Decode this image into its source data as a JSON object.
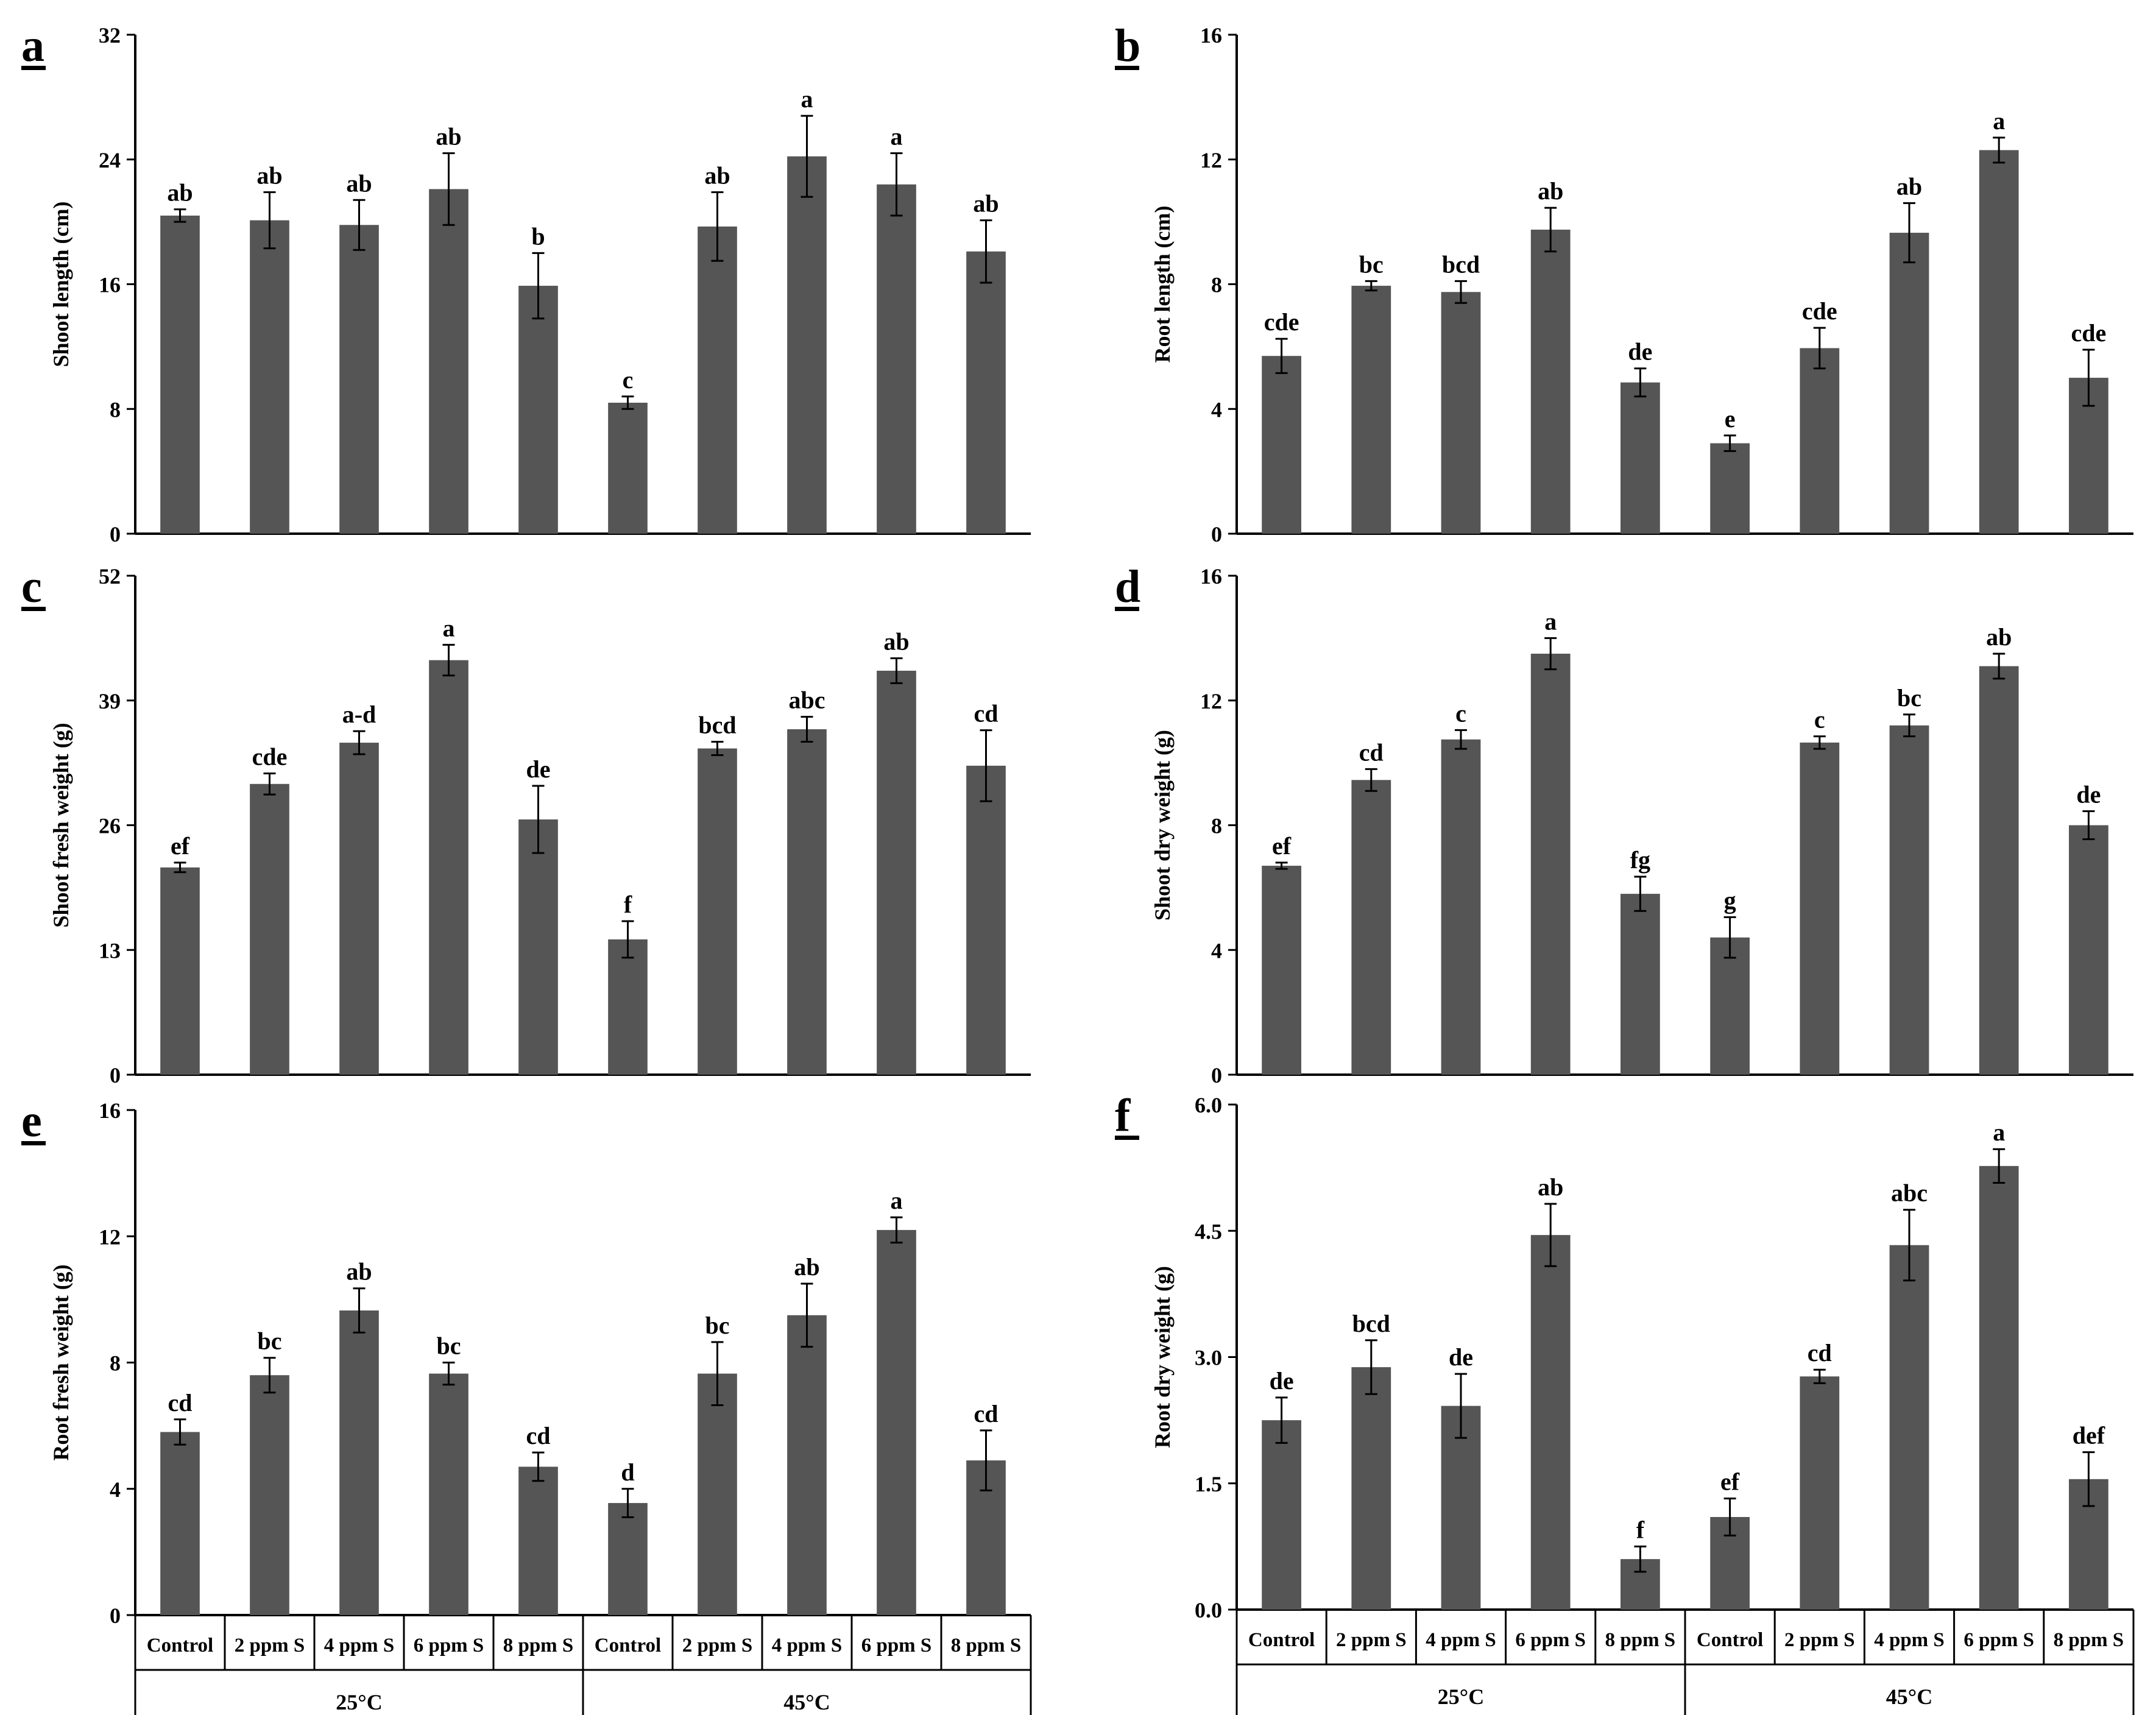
{
  "figure": {
    "categories": [
      "Control",
      "2 ppm S",
      "4 ppm S",
      "6 ppm S",
      "8 ppm S",
      "Control",
      "2 ppm S",
      "4 ppm S",
      "6 ppm S",
      "8 ppm S"
    ],
    "groups": [
      "25°C",
      "45°C"
    ],
    "bar_color": "#555555"
  },
  "chart_data": [
    {
      "panel": "a",
      "type": "bar",
      "ylabel": "Shoot length (cm)",
      "ylim": [
        0,
        32
      ],
      "yticks": [
        "0",
        "8",
        "16",
        "24",
        "32"
      ],
      "values": [
        20.4,
        20.1,
        19.8,
        22.1,
        15.9,
        8.4,
        19.7,
        24.2,
        22.4,
        18.1
      ],
      "errors": [
        0.4,
        1.8,
        1.6,
        2.3,
        2.1,
        0.4,
        2.2,
        2.6,
        2.0,
        2.0
      ],
      "significance": [
        "ab",
        "ab",
        "ab",
        "ab",
        "b",
        "c",
        "ab",
        "a",
        "a",
        "ab"
      ]
    },
    {
      "panel": "b",
      "type": "bar",
      "ylabel": "Root length (cm)",
      "ylim": [
        0,
        16
      ],
      "yticks": [
        "0",
        "4",
        "8",
        "12",
        "16"
      ],
      "values": [
        5.7,
        7.95,
        7.75,
        9.75,
        4.85,
        2.9,
        5.95,
        9.65,
        12.3,
        5.0
      ],
      "errors": [
        0.55,
        0.15,
        0.35,
        0.7,
        0.45,
        0.25,
        0.65,
        0.95,
        0.4,
        0.9
      ],
      "significance": [
        "cde",
        "bc",
        "bcd",
        "ab",
        "de",
        "e",
        "cde",
        "ab",
        "a",
        "cde"
      ]
    },
    {
      "panel": "c",
      "type": "bar",
      "ylabel": "Shoot fresh weight (g)",
      "ylim": [
        0,
        52
      ],
      "yticks": [
        "0",
        "13",
        "26",
        "39",
        "52"
      ],
      "values": [
        21.6,
        30.3,
        34.6,
        43.2,
        26.6,
        14.1,
        34.0,
        36.0,
        42.1,
        32.2
      ],
      "errors": [
        0.5,
        1.1,
        1.2,
        1.6,
        3.5,
        1.9,
        0.7,
        1.3,
        1.3,
        3.7
      ],
      "significance": [
        "ef",
        "cde",
        "a-d",
        "a",
        "de",
        "f",
        "bcd",
        "abc",
        "ab",
        "cd"
      ]
    },
    {
      "panel": "d",
      "type": "bar",
      "ylabel": "Shoot dry weight (g)",
      "ylim": [
        0,
        16
      ],
      "yticks": [
        "0",
        "4",
        "8",
        "12",
        "16"
      ],
      "values": [
        6.7,
        9.45,
        10.75,
        13.5,
        5.8,
        4.4,
        10.65,
        11.2,
        13.1,
        8.0
      ],
      "errors": [
        0.1,
        0.35,
        0.3,
        0.5,
        0.55,
        0.65,
        0.2,
        0.35,
        0.4,
        0.45
      ],
      "significance": [
        "ef",
        "cd",
        "c",
        "a",
        "fg",
        "g",
        "c",
        "bc",
        "ab",
        "de"
      ]
    },
    {
      "panel": "e",
      "type": "bar",
      "ylabel": "Root fresh weight (g)",
      "ylim": [
        0,
        16
      ],
      "yticks": [
        "0",
        "4",
        "8",
        "12",
        "16"
      ],
      "values": [
        5.8,
        7.6,
        9.65,
        7.65,
        4.7,
        3.55,
        7.65,
        9.5,
        12.2,
        4.9
      ],
      "errors": [
        0.4,
        0.55,
        0.7,
        0.35,
        0.45,
        0.45,
        1.0,
        1.0,
        0.4,
        0.95
      ],
      "significance": [
        "cd",
        "bc",
        "ab",
        "bc",
        "cd",
        "d",
        "bc",
        "ab",
        "a",
        "cd"
      ]
    },
    {
      "panel": "f",
      "type": "bar",
      "ylabel": "Root dry weight (g)",
      "ylim": [
        0,
        6
      ],
      "yticks": [
        "0.0",
        "1.5",
        "3.0",
        "4.5",
        "6.0"
      ],
      "values": [
        2.25,
        2.88,
        2.42,
        4.45,
        0.6,
        1.1,
        2.77,
        4.33,
        5.27,
        1.55
      ],
      "errors": [
        0.27,
        0.32,
        0.38,
        0.37,
        0.15,
        0.22,
        0.08,
        0.42,
        0.2,
        0.32
      ],
      "significance": [
        "de",
        "bcd",
        "de",
        "ab",
        "f",
        "ef",
        "cd",
        "abc",
        "a",
        "def"
      ]
    }
  ]
}
